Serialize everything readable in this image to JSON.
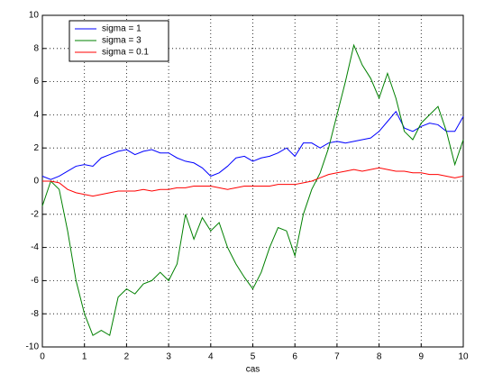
{
  "chart_data": {
    "type": "line",
    "x_label": "cas",
    "x": [
      0,
      0.2,
      0.4,
      0.6,
      0.8,
      1,
      1.2,
      1.4,
      1.6,
      1.8,
      2,
      2.2,
      2.4,
      2.6,
      2.8,
      3,
      3.2,
      3.4,
      3.6,
      3.8,
      4,
      4.2,
      4.4,
      4.6,
      4.8,
      5,
      5.2,
      5.4,
      5.6,
      5.8,
      6,
      6.2,
      6.4,
      6.6,
      6.8,
      7,
      7.2,
      7.4,
      7.6,
      7.8,
      8,
      8.2,
      8.4,
      8.6,
      8.8,
      9,
      9.2,
      9.4,
      9.6,
      9.8,
      10
    ],
    "series": [
      {
        "name": "sigma = 1",
        "color": "#0000ff",
        "values": [
          0.3,
          0.1,
          0.3,
          0.6,
          0.9,
          1.0,
          0.9,
          1.4,
          1.6,
          1.8,
          1.9,
          1.6,
          1.8,
          1.9,
          1.7,
          1.7,
          1.4,
          1.2,
          1.1,
          0.8,
          0.3,
          0.5,
          0.9,
          1.4,
          1.5,
          1.2,
          1.4,
          1.5,
          1.7,
          2.0,
          1.5,
          2.3,
          2.3,
          2.0,
          2.3,
          2.4,
          2.3,
          2.4,
          2.5,
          2.6,
          3.0,
          3.6,
          4.2,
          3.2,
          3.0,
          3.3,
          3.5,
          3.4,
          3.0,
          3.0,
          3.9
        ]
      },
      {
        "name": "sigma = 3",
        "color": "#008000",
        "values": [
          -1.5,
          0.0,
          -0.5,
          -3.0,
          -6.0,
          -8.0,
          -9.3,
          -9.0,
          -9.3,
          -7.0,
          -6.5,
          -6.8,
          -6.2,
          -6.0,
          -5.5,
          -6.0,
          -5.0,
          -2.0,
          -3.5,
          -2.2,
          -3.0,
          -2.5,
          -4.0,
          -5.0,
          -5.8,
          -6.5,
          -5.5,
          -4.0,
          -2.8,
          -3.0,
          -4.5,
          -2.0,
          -0.5,
          0.5,
          2.0,
          4.0,
          6.0,
          8.2,
          7.0,
          6.2,
          5.0,
          6.5,
          5.0,
          3.0,
          2.5,
          3.5,
          4.0,
          4.5,
          3.0,
          1.0,
          2.5
        ]
      },
      {
        "name": "sigma = 0.1",
        "color": "#ff0000",
        "values": [
          0.0,
          0.0,
          -0.1,
          -0.5,
          -0.7,
          -0.8,
          -0.9,
          -0.8,
          -0.7,
          -0.6,
          -0.6,
          -0.6,
          -0.5,
          -0.6,
          -0.5,
          -0.5,
          -0.4,
          -0.4,
          -0.3,
          -0.3,
          -0.3,
          -0.4,
          -0.5,
          -0.4,
          -0.3,
          -0.3,
          -0.3,
          -0.3,
          -0.2,
          -0.2,
          -0.2,
          -0.1,
          0.0,
          0.2,
          0.4,
          0.5,
          0.6,
          0.7,
          0.6,
          0.7,
          0.8,
          0.7,
          0.6,
          0.6,
          0.5,
          0.5,
          0.4,
          0.4,
          0.3,
          0.2,
          0.3
        ]
      }
    ],
    "xlim": [
      0,
      10
    ],
    "xticks": [
      0,
      1,
      2,
      3,
      4,
      5,
      6,
      7,
      8,
      9,
      10
    ],
    "ylim": [
      -10,
      10
    ],
    "yticks": [
      -10,
      -8,
      -6,
      -4,
      -2,
      0,
      2,
      4,
      6,
      8,
      10
    ],
    "grid": true,
    "legend": "upper left"
  }
}
